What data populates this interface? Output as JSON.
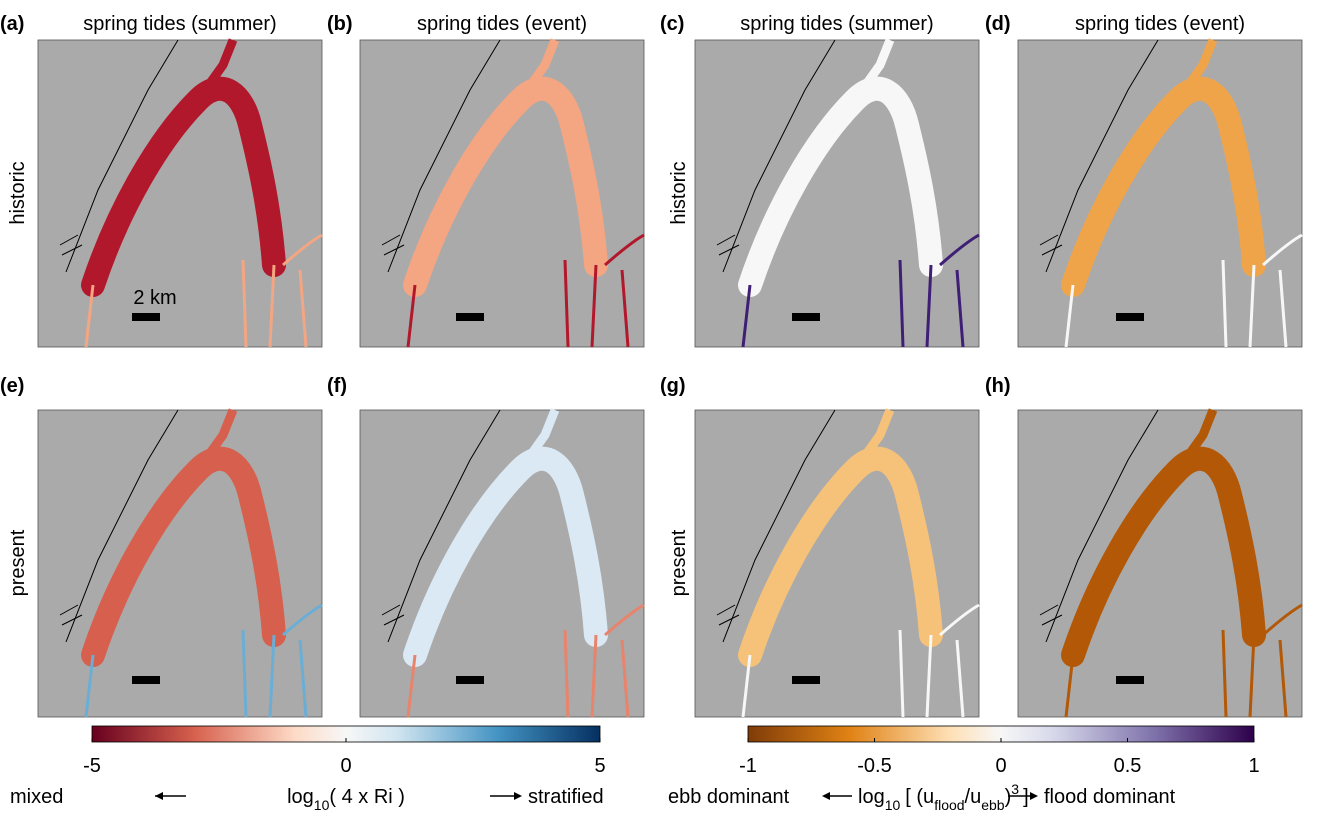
{
  "panels": [
    {
      "label": "(a)",
      "title": "spring tides (summer)",
      "row_label": "historic"
    },
    {
      "label": "(b)",
      "title": "spring tides (event)"
    },
    {
      "label": "(c)",
      "title": "spring tides (summer)",
      "row_label": "historic"
    },
    {
      "label": "(d)",
      "title": "spring tides (event)"
    },
    {
      "label": "(e)",
      "row_label": "present"
    },
    {
      "label": "(f)"
    },
    {
      "label": "(g)",
      "row_label": "present"
    },
    {
      "label": "(h)"
    }
  ],
  "scale_bar": "2 km",
  "colorbars": [
    {
      "ticks": [
        -5,
        0,
        5
      ],
      "label": [
        "log",
        "10",
        "( 4 x Ri )"
      ],
      "left": "mixed",
      "right": "stratified"
    },
    {
      "ticks": [
        -1,
        -0.5,
        0,
        0.5,
        1
      ],
      "label": [
        "log",
        "10",
        "[ (u",
        "flood",
        "/u",
        "ebb",
        ")",
        "3",
        "]"
      ],
      "left": "ebb dominant",
      "right": "flood dominant"
    }
  ]
}
